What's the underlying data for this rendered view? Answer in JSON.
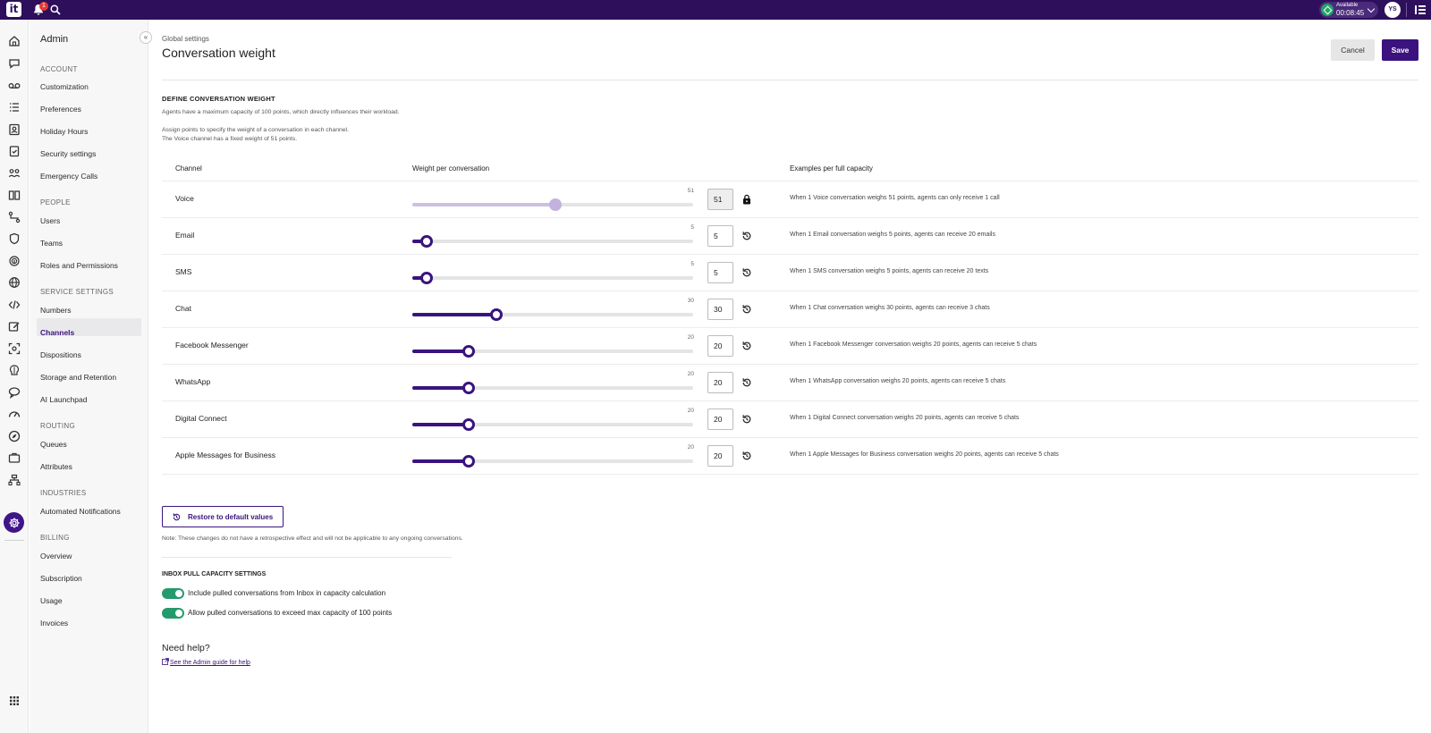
{
  "topbar": {
    "logo": "it",
    "notification_count": "1",
    "status_label": "Available",
    "status_timer": "00:08:45",
    "avatar_initials": "YS"
  },
  "sidebar": {
    "title": "Admin",
    "collapse_icon": "«",
    "sections": [
      {
        "label": "ACCOUNT",
        "items": [
          "Customization",
          "Preferences",
          "Holiday Hours",
          "Security settings",
          "Emergency Calls"
        ]
      },
      {
        "label": "PEOPLE",
        "items": [
          "Users",
          "Teams",
          "Roles and Permissions"
        ]
      },
      {
        "label": "SERVICE SETTINGS",
        "items": [
          "Numbers",
          "Channels",
          "Dispositions",
          "Storage and Retention",
          "AI Launchpad"
        ]
      },
      {
        "label": "ROUTING",
        "items": [
          "Queues",
          "Attributes"
        ]
      },
      {
        "label": "INDUSTRIES",
        "items": [
          "Automated Notifications"
        ]
      },
      {
        "label": "BILLING",
        "items": [
          "Overview",
          "Subscription",
          "Usage",
          "Invoices"
        ]
      }
    ],
    "active_item": "Channels"
  },
  "header": {
    "breadcrumb": "Global settings",
    "title": "Conversation weight",
    "cancel_label": "Cancel",
    "save_label": "Save"
  },
  "define": {
    "heading": "DEFINE CONVERSATION WEIGHT",
    "desc1": "Agents have a maximum capacity of 100 points, which directly influences their workload.",
    "desc2": "Assign points to specify the weight of a conversation in each channel.",
    "desc3": "The Voice channel has a fixed weight of 51 points."
  },
  "table": {
    "col_channel": "Channel",
    "col_weight": "Weight per conversation",
    "col_examples": "Examples per full capacity",
    "slider_max": 100,
    "rows": [
      {
        "channel": "Voice",
        "value": "51",
        "locked": true,
        "example": "When 1 Voice conversation weighs 51 points, agents can only receive 1 call"
      },
      {
        "channel": "Email",
        "value": "5",
        "locked": false,
        "example": "When 1 Email conversation weighs 5 points, agents can receive 20 emails"
      },
      {
        "channel": "SMS",
        "value": "5",
        "locked": false,
        "example": "When 1 SMS conversation weighs 5 points, agents can receive 20 texts"
      },
      {
        "channel": "Chat",
        "value": "30",
        "locked": false,
        "example": "When 1 Chat conversation weighs 30 points, agents can receive 3 chats"
      },
      {
        "channel": "Facebook Messenger",
        "value": "20",
        "locked": false,
        "example": "When 1 Facebook Messenger conversation weighs 20 points, agents can receive 5 chats"
      },
      {
        "channel": "WhatsApp",
        "value": "20",
        "locked": false,
        "example": "When 1 WhatsApp conversation weighs 20 points, agents can receive 5 chats"
      },
      {
        "channel": "Digital Connect",
        "value": "20",
        "locked": false,
        "example": "When 1 Digital Connect conversation weighs 20 points, agents can receive 5 chats"
      },
      {
        "channel": "Apple Messages for Business",
        "value": "20",
        "locked": false,
        "example": "When 1 Apple Messages for Business conversation weighs 20 points, agents can receive 5 chats"
      }
    ]
  },
  "restore": {
    "label": "Restore to default values",
    "note": "Note: These changes do not have a retrospective effect and will not be applicable to any ongoing conversations."
  },
  "inbox": {
    "heading": "INBOX PULL CAPACITY SETTINGS",
    "toggle1": "Include pulled conversations from Inbox in capacity calculation",
    "toggle2": "Allow pulled conversations to exceed max capacity of 100 points",
    "toggle1_on": true,
    "toggle2_on": true
  },
  "help": {
    "title": "Need help?",
    "link": "See the Admin guide for help"
  },
  "colors": {
    "brand": "#2d0f5c",
    "accent": "#3a137f",
    "toggle_on": "#249b6c"
  }
}
